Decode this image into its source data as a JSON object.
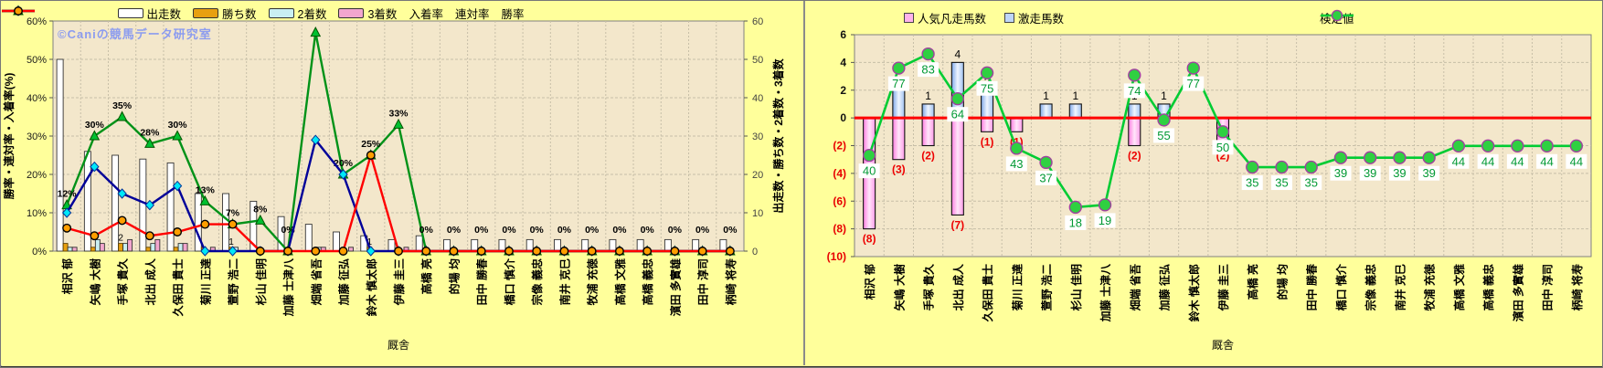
{
  "watermark": "©Caniの競馬データ研究室",
  "colors": {
    "background": "#FFFF9B",
    "plot_bg": "#F3E7CB",
    "grid": "#C7BFA8",
    "axis": "#808080",
    "zero_line": "#FF0000",
    "negative_tick": "#E80000",
    "value_label_green": "#009933",
    "neg_label_red": "#EE0000",
    "watermark": "#8C9CEF"
  },
  "chart_data": [
    {
      "id": "left",
      "type": "bar+line combo",
      "x_title": "厩舎",
      "y_left": {
        "title": "勝率・連対率・入着率(%)",
        "tick_labels": [
          "60%",
          "50%",
          "40%",
          "30%",
          "20%",
          "10%",
          "0%"
        ],
        "tick_values": [
          60,
          50,
          40,
          30,
          20,
          10,
          0
        ],
        "min": 0,
        "max": 60
      },
      "y_right": {
        "title": "出走数・勝ち数・2着数・3着数",
        "tick_labels": [
          "60",
          "50",
          "40",
          "30",
          "20",
          "10",
          "0"
        ],
        "tick_values": [
          60,
          50,
          40,
          30,
          20,
          10,
          0
        ],
        "min": 0,
        "max": 60
      },
      "categories": [
        "相沢 郁",
        "矢嶋 大樹",
        "手塚 貴久",
        "北出 成人",
        "久保田 貴士",
        "菊川 正達",
        "萱野 浩二",
        "杉山 佳明",
        "加藤 士津八",
        "畑端 省吾",
        "加藤 征弘",
        "鈴木 慎太郎",
        "伊藤 圭三",
        "高橋 亮",
        "的場 均",
        "田中 勝春",
        "橋口 慎介",
        "宗像 義忠",
        "南井 克巳",
        "牧浦 充徳",
        "高橋 文雅",
        "高橋 義忠",
        "濱田 多實雄",
        "田中 淳司",
        "柄崎 将寿"
      ],
      "bar_series": [
        {
          "name": "出走数",
          "color": "#FFFFFF",
          "stroke": "#333333",
          "values": [
            50,
            26,
            25,
            24,
            23,
            15,
            15,
            13,
            9,
            7,
            5,
            4,
            3,
            4,
            3,
            3,
            3,
            3,
            3,
            3,
            3,
            3,
            3,
            3,
            3
          ],
          "labels": [
            null,
            null,
            null,
            null,
            null,
            null,
            null,
            null,
            null,
            null,
            null,
            null,
            null,
            null,
            null,
            null,
            null,
            null,
            null,
            null,
            null,
            null,
            null,
            null,
            null
          ]
        },
        {
          "name": "勝ち数",
          "color": "#E8A010",
          "stroke": "#5C4000",
          "values": [
            2,
            1,
            2,
            1,
            1,
            1,
            1,
            1,
            0,
            0,
            0,
            1,
            0,
            0,
            0,
            0,
            0,
            0,
            0,
            0,
            0,
            0,
            0,
            0,
            0
          ],
          "labels": [
            null,
            null,
            "2",
            null,
            null,
            null,
            "1",
            null,
            null,
            null,
            null,
            "1",
            null,
            null,
            null,
            null,
            null,
            null,
            null,
            null,
            null,
            null,
            null,
            null,
            null
          ]
        },
        {
          "name": "2着数",
          "color": "#C9EFF2",
          "stroke": "#333333",
          "values": [
            1,
            3,
            2,
            2,
            2,
            0,
            1,
            0,
            0,
            1,
            0,
            0,
            0,
            0,
            0,
            0,
            0,
            0,
            0,
            0,
            0,
            0,
            0,
            0,
            0
          ],
          "labels": [
            null,
            null,
            null,
            null,
            null,
            null,
            null,
            null,
            null,
            null,
            null,
            null,
            null,
            null,
            null,
            null,
            null,
            null,
            null,
            null,
            null,
            null,
            null,
            null,
            null
          ]
        },
        {
          "name": "3着数",
          "color": "#F2A6CE",
          "stroke": "#333333",
          "values": [
            1,
            2,
            3,
            3,
            2,
            1,
            0,
            0,
            0,
            1,
            1,
            0,
            1,
            0,
            0,
            0,
            0,
            0,
            0,
            0,
            0,
            0,
            0,
            0,
            0
          ],
          "labels": [
            null,
            null,
            null,
            null,
            null,
            null,
            null,
            null,
            null,
            null,
            null,
            null,
            null,
            null,
            null,
            null,
            null,
            null,
            null,
            null,
            null,
            null,
            null,
            null,
            null
          ]
        }
      ],
      "line_series": [
        {
          "name": "入着率",
          "color": "#009218",
          "marker": "triangle",
          "marker_fill": "#00C030",
          "marker_stroke": "#005500",
          "values": [
            12,
            30,
            35,
            28,
            30,
            13,
            7,
            8,
            0,
            57,
            20,
            25,
            33,
            0,
            0,
            0,
            0,
            0,
            0,
            0,
            0,
            0,
            0,
            0,
            0
          ],
          "labels": [
            "12%",
            "30%",
            "35%",
            "28%",
            "30%",
            "13%",
            "7%",
            "8%",
            "0%",
            null,
            "20%",
            "25%",
            "33%",
            "0%",
            "0%",
            "0%",
            "0%",
            "0%",
            "0%",
            "0%",
            "0%",
            "0%",
            "0%",
            "0%",
            "0%"
          ]
        },
        {
          "name": "連対率",
          "color": "#000099",
          "marker": "diamond",
          "marker_fill": "#00E8F8",
          "marker_stroke": "#003399",
          "values": [
            10,
            22,
            15,
            12,
            17,
            0,
            0,
            0,
            0,
            29,
            20,
            0,
            0,
            0,
            0,
            0,
            0,
            0,
            0,
            0,
            0,
            0,
            0,
            0,
            0
          ],
          "labels": [
            null,
            null,
            null,
            null,
            null,
            null,
            null,
            null,
            null,
            null,
            null,
            null,
            null,
            null,
            null,
            null,
            null,
            null,
            null,
            null,
            null,
            null,
            null,
            null,
            null
          ]
        },
        {
          "name": "勝率",
          "color": "#FF0000",
          "marker": "circle",
          "marker_fill": "#FF9E00",
          "marker_stroke": "#000000",
          "values": [
            6,
            4,
            8,
            4,
            5,
            7,
            7,
            0,
            0,
            0,
            0,
            25,
            0,
            0,
            0,
            0,
            0,
            0,
            0,
            0,
            0,
            0,
            0,
            0,
            0
          ],
          "labels": [
            null,
            null,
            null,
            null,
            null,
            null,
            null,
            null,
            null,
            null,
            null,
            null,
            null,
            null,
            null,
            null,
            null,
            null,
            null,
            null,
            null,
            null,
            null,
            null,
            null
          ]
        }
      ],
      "legend": [
        {
          "label": "出走数",
          "type": "bar",
          "color": "#FFFFFF"
        },
        {
          "label": "勝ち数",
          "type": "bar",
          "color": "#E8A010"
        },
        {
          "label": "2着数",
          "type": "bar",
          "color": "#C9EFF2"
        },
        {
          "label": "3着数",
          "type": "bar",
          "color": "#F2A6CE"
        },
        {
          "label": "入着率",
          "type": "line",
          "color": "#009218",
          "marker": "triangle",
          "marker_fill": "#00C030",
          "marker_stroke": "#005500"
        },
        {
          "label": "連対率",
          "type": "line",
          "color": "#000099",
          "marker": "diamond",
          "marker_fill": "#00E8F8",
          "marker_stroke": "#003399"
        },
        {
          "label": "勝率",
          "type": "line",
          "color": "#FF0000",
          "marker": "circle",
          "marker_fill": "#FF9E00",
          "marker_stroke": "#000000"
        }
      ]
    },
    {
      "id": "right",
      "type": "bar+line combo",
      "x_title": "厩舎",
      "y": {
        "tick_labels": [
          "6",
          "4",
          "2",
          "0",
          "(2)",
          "(4)",
          "(6)",
          "(8)",
          "(10)"
        ],
        "tick_values": [
          6,
          4,
          2,
          0,
          -2,
          -4,
          -6,
          -8,
          -10
        ],
        "min": -10,
        "max": 6
      },
      "categories": [
        "相沢 郁",
        "矢嶋 大樹",
        "手塚 貴久",
        "北出 成人",
        "久保田 貴士",
        "菊川 正達",
        "萱野 浩二",
        "杉山 佳明",
        "加藤 士津八",
        "畑端 省吾",
        "加藤 征弘",
        "鈴木 慎太郎",
        "伊藤 圭三",
        "高橋 亮",
        "的場 均",
        "田中 勝春",
        "橋口 慎介",
        "宗像 義忠",
        "南井 克巳",
        "牧浦 充徳",
        "高橋 文雅",
        "高橋 義忠",
        "濱田 多實雄",
        "田中 淳司",
        "柄崎 将寿"
      ],
      "bar_series": [
        {
          "name": "人気凡走馬数",
          "direction": "down",
          "gradient": [
            "#FF7DE0",
            "#FFE6FA",
            "#FF9BE8"
          ],
          "stroke": "#111111",
          "values": [
            8,
            3,
            2,
            7,
            1,
            1,
            0,
            0,
            0,
            2,
            0,
            0,
            2,
            0,
            0,
            0,
            0,
            0,
            0,
            0,
            0,
            0,
            0,
            0,
            0
          ],
          "labels": [
            "(8)",
            "(3)",
            "(2)",
            "(7)",
            "(1)",
            "(1)",
            null,
            null,
            null,
            "(2)",
            null,
            null,
            "(2)",
            null,
            null,
            null,
            null,
            null,
            null,
            null,
            null,
            null,
            null,
            null,
            null
          ]
        },
        {
          "name": "激走馬数",
          "direction": "up",
          "gradient": [
            "#7FA8E8",
            "#F0F6FF",
            "#9FC0F0"
          ],
          "stroke": "#111111",
          "values": [
            0,
            2,
            1,
            4,
            2,
            0,
            1,
            1,
            0,
            1,
            1,
            0,
            0,
            0,
            0,
            0,
            0,
            0,
            0,
            0,
            0,
            0,
            0,
            0,
            0
          ],
          "labels": [
            null,
            "2",
            "1",
            "4",
            "2",
            null,
            "1",
            "1",
            null,
            "1",
            "1",
            null,
            null,
            null,
            null,
            null,
            null,
            null,
            null,
            null,
            null,
            null,
            null,
            null,
            null
          ]
        }
      ],
      "line_series": [
        {
          "name": "検定値",
          "color": "#00CC33",
          "marker": "circle",
          "marker_fill": "#2FD041",
          "marker_stroke": "#A040A0",
          "values": [
            40,
            77,
            83,
            64,
            75,
            43,
            37,
            18,
            19,
            74,
            55,
            77,
            50,
            35,
            35,
            35,
            39,
            39,
            39,
            39,
            44,
            44,
            44,
            44,
            44
          ],
          "labels": [
            "40",
            "77",
            "83",
            "64",
            "75",
            "43",
            "37",
            "18",
            "19",
            "74",
            "55",
            "77",
            "50",
            "35",
            "35",
            "35",
            "39",
            "39",
            "39",
            "39",
            "44",
            "44",
            "44",
            "44",
            "44"
          ],
          "secondary_scale": {
            "note": "hidden axis: plotted_y = 0.17*value - 9.5 on the -10..6 axis",
            "slope": 0.17,
            "intercept": -9.5
          }
        }
      ],
      "legend": [
        {
          "label": "人気凡走馬数",
          "type": "square",
          "color": "#FFB2EC"
        },
        {
          "label": "激走馬数",
          "type": "square",
          "color": "#BFD6F8"
        },
        {
          "label": "検定値",
          "type": "line",
          "color": "#00CC33",
          "marker": "circle",
          "marker_fill": "#2FD041",
          "marker_stroke": "#A040A0"
        }
      ]
    }
  ]
}
